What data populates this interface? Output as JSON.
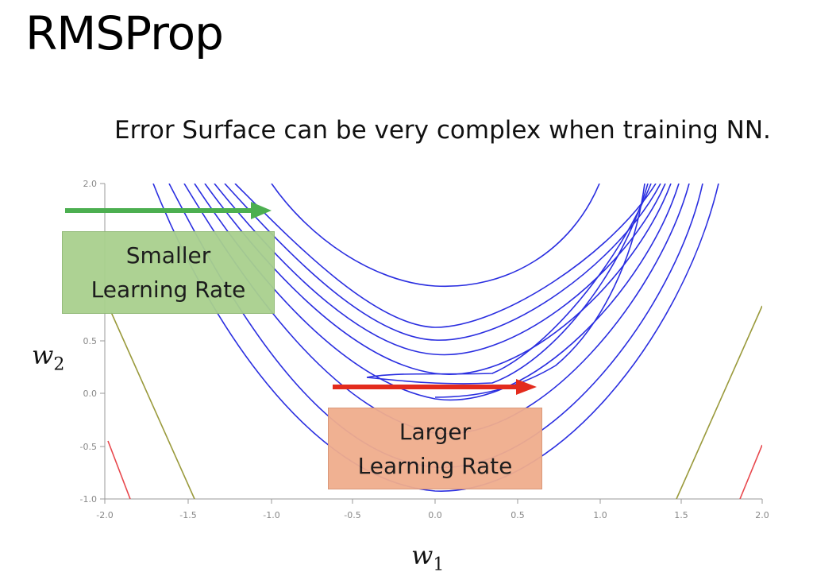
{
  "slide": {
    "title": "RMSProp",
    "subtitle": "Error Surface can be very complex when training NN."
  },
  "plot": {
    "x_ticks": [
      "-2.0",
      "-1.5",
      "-1.0",
      "-0.5",
      "0.0",
      "0.5",
      "1.0",
      "1.5",
      "2.0"
    ],
    "y_ticks": [
      "2.0",
      "0.5",
      "0.0",
      "-0.5",
      "-1.0"
    ],
    "xlim": [
      -2.0,
      2.0
    ],
    "ylim": [
      -1.0,
      2.0
    ],
    "x_label": "w",
    "x_label_sub": "1",
    "y_label": "w",
    "y_label_sub": "2"
  },
  "callouts": {
    "smaller_line1": "Smaller",
    "smaller_line2": "Learning Rate",
    "larger_line1": "Larger",
    "larger_line2": "Learning Rate"
  },
  "colors": {
    "contour": "#2a2ee0",
    "green_arrow": "#4caf50",
    "red_arrow": "#e32b1d",
    "olive_line": "#9a9a3c",
    "red_line": "#e8474c",
    "green_box": "#a9d08e",
    "orange_box": "#f0ad8d"
  }
}
